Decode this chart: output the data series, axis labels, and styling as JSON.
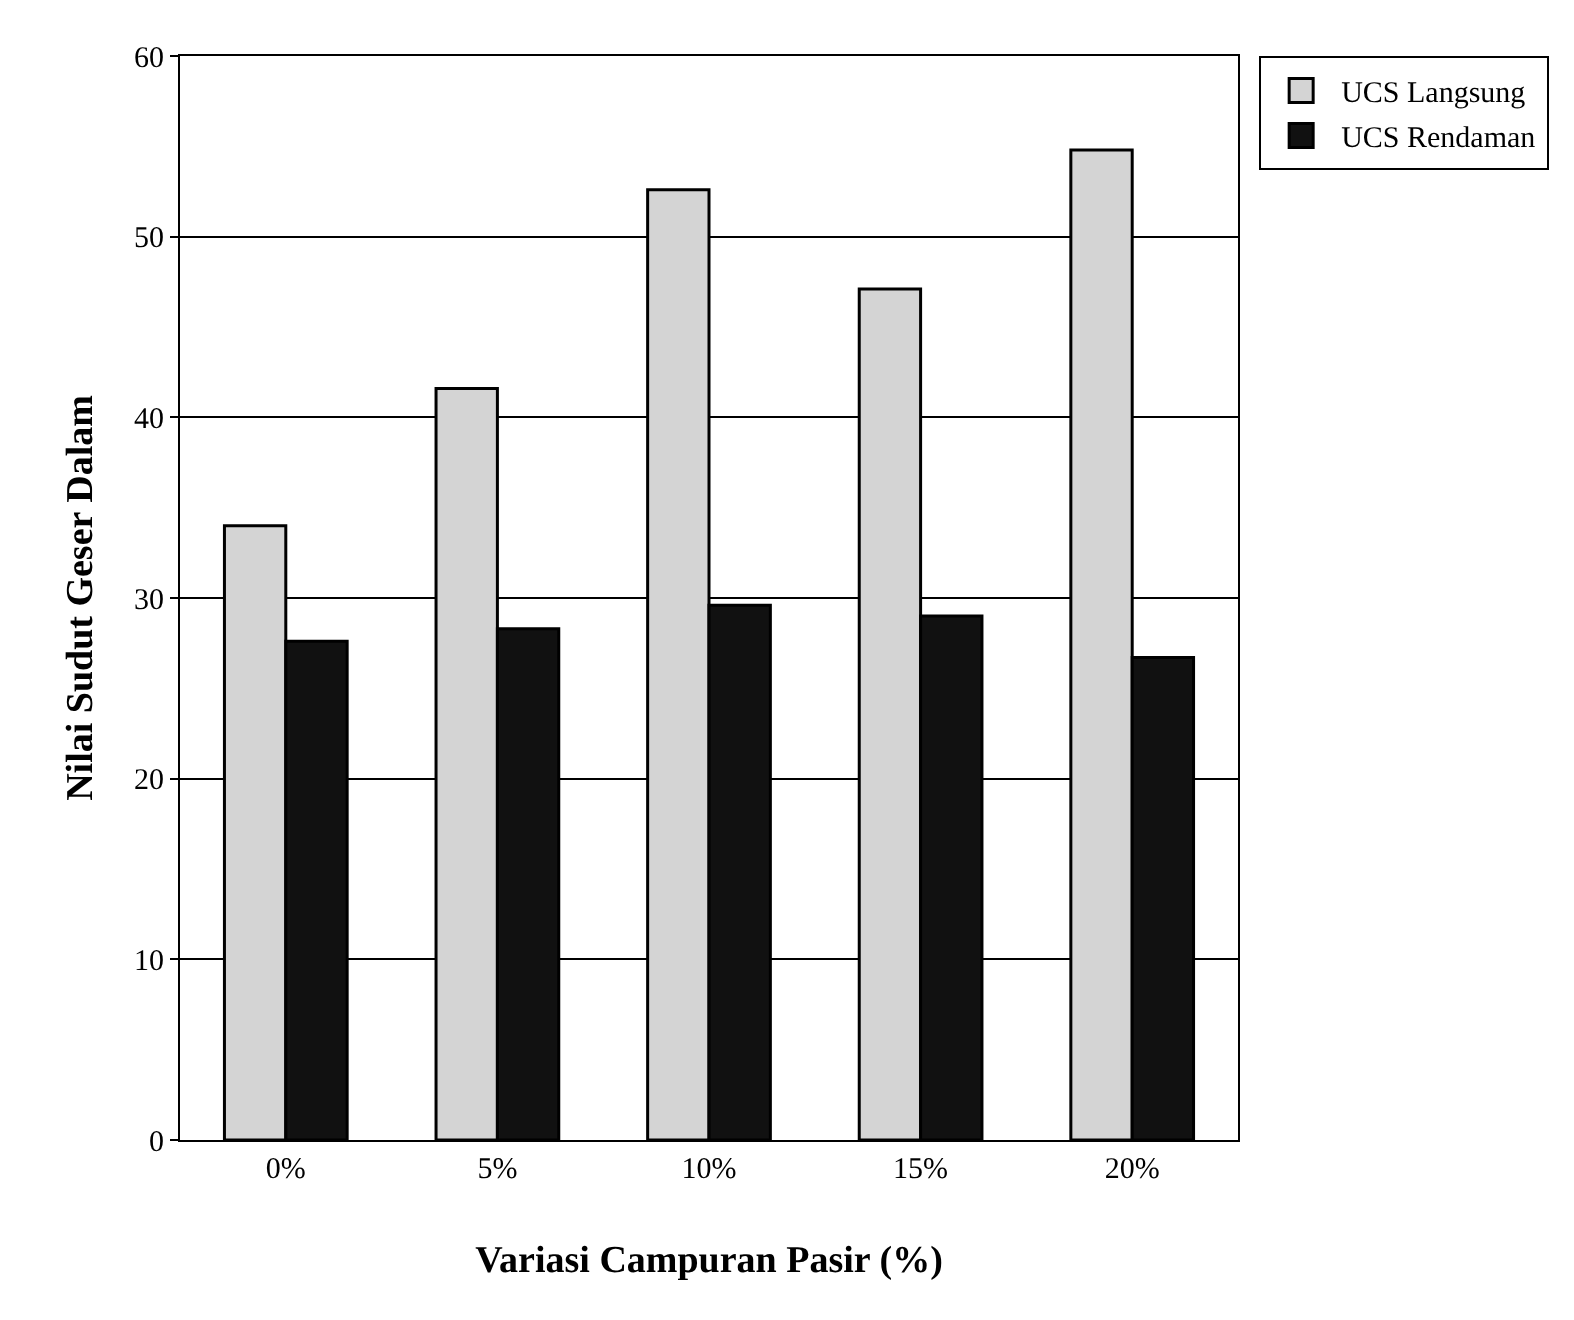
{
  "chart_data": {
    "type": "bar",
    "xlabel": "Variasi Campuran Pasir (%)",
    "ylabel": "Nilai Sudut Geser Dalam",
    "categories": [
      "0%",
      "5%",
      "10%",
      "15%",
      "20%"
    ],
    "series": [
      {
        "name": "UCS Langsung",
        "color": "#d4d4d4",
        "values": [
          34.0,
          41.6,
          52.6,
          47.1,
          54.8
        ]
      },
      {
        "name": "UCS Rendaman",
        "color": "#111111",
        "values": [
          27.6,
          28.3,
          29.6,
          29.0,
          26.7
        ]
      }
    ],
    "ylim": [
      0,
      60
    ],
    "yticks": [
      0,
      10,
      20,
      30,
      40,
      50,
      60
    ],
    "grid": "y",
    "legend": "top right"
  }
}
